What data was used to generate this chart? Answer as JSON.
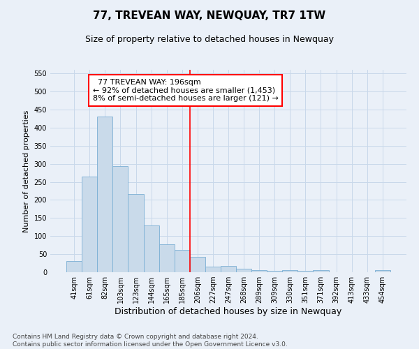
{
  "title": "77, TREVEAN WAY, NEWQUAY, TR7 1TW",
  "subtitle": "Size of property relative to detached houses in Newquay",
  "xlabel": "Distribution of detached houses by size in Newquay",
  "ylabel": "Number of detached properties",
  "footer_line1": "Contains HM Land Registry data © Crown copyright and database right 2024.",
  "footer_line2": "Contains public sector information licensed under the Open Government Licence v3.0.",
  "bin_labels": [
    "41sqm",
    "61sqm",
    "82sqm",
    "103sqm",
    "123sqm",
    "144sqm",
    "165sqm",
    "185sqm",
    "206sqm",
    "227sqm",
    "247sqm",
    "268sqm",
    "289sqm",
    "309sqm",
    "330sqm",
    "351sqm",
    "371sqm",
    "392sqm",
    "413sqm",
    "433sqm",
    "454sqm"
  ],
  "bar_values": [
    30,
    265,
    430,
    293,
    217,
    130,
    77,
    62,
    42,
    15,
    18,
    10,
    5,
    3,
    5,
    4,
    5,
    0,
    0,
    0,
    5
  ],
  "bar_color": "#c9daea",
  "bar_edgecolor": "#7bafd4",
  "grid_color": "#c8d8ea",
  "background_color": "#eaf0f8",
  "vline_x": 7.5,
  "vline_color": "red",
  "annotation_text": "  77 TREVEAN WAY: 196sqm\n← 92% of detached houses are smaller (1,453)\n8% of semi-detached houses are larger (121) →",
  "annotation_box_color": "red",
  "ylim": [
    0,
    560
  ],
  "yticks": [
    0,
    50,
    100,
    150,
    200,
    250,
    300,
    350,
    400,
    450,
    500,
    550
  ],
  "title_fontsize": 11,
  "subtitle_fontsize": 9,
  "annotation_fontsize": 8,
  "ylabel_fontsize": 8,
  "xlabel_fontsize": 9,
  "tick_fontsize": 7,
  "footer_fontsize": 6.5
}
